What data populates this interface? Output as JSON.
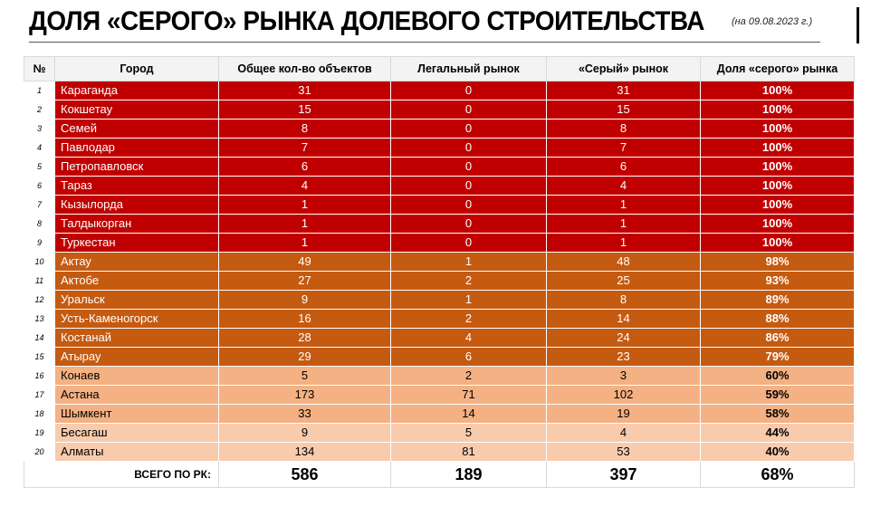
{
  "title": "ДОЛЯ «СЕРОГО» РЫНКА ДОЛЕВОГО СТРОИТЕЛЬСТВА",
  "subtitle": "(на 09.08.2023 г.)",
  "headers": [
    "№",
    "Город",
    "Общее кол-во объектов",
    "Легальный рынок",
    "«Серый» рынок",
    "Доля «серого» рынка"
  ],
  "rows": [
    {
      "n": "1",
      "city": "Караганда",
      "total": "31",
      "legal": "0",
      "gray": "31",
      "share": "100%",
      "tier": 1
    },
    {
      "n": "2",
      "city": "Кокшетау",
      "total": "15",
      "legal": "0",
      "gray": "15",
      "share": "100%",
      "tier": 1
    },
    {
      "n": "3",
      "city": "Семей",
      "total": "8",
      "legal": "0",
      "gray": "8",
      "share": "100%",
      "tier": 1
    },
    {
      "n": "4",
      "city": "Павлодар",
      "total": "7",
      "legal": "0",
      "gray": "7",
      "share": "100%",
      "tier": 1
    },
    {
      "n": "5",
      "city": "Петропавловск",
      "total": "6",
      "legal": "0",
      "gray": "6",
      "share": "100%",
      "tier": 1
    },
    {
      "n": "6",
      "city": "Тараз",
      "total": "4",
      "legal": "0",
      "gray": "4",
      "share": "100%",
      "tier": 1
    },
    {
      "n": "7",
      "city": "Кызылорда",
      "total": "1",
      "legal": "0",
      "gray": "1",
      "share": "100%",
      "tier": 1
    },
    {
      "n": "8",
      "city": "Талдыкорган",
      "total": "1",
      "legal": "0",
      "gray": "1",
      "share": "100%",
      "tier": 1
    },
    {
      "n": "9",
      "city": "Туркестан",
      "total": "1",
      "legal": "0",
      "gray": "1",
      "share": "100%",
      "tier": 1
    },
    {
      "n": "10",
      "city": "Актау",
      "total": "49",
      "legal": "1",
      "gray": "48",
      "share": "98%",
      "tier": 2
    },
    {
      "n": "11",
      "city": "Актобе",
      "total": "27",
      "legal": "2",
      "gray": "25",
      "share": "93%",
      "tier": 2
    },
    {
      "n": "12",
      "city": "Уральск",
      "total": "9",
      "legal": "1",
      "gray": "8",
      "share": "89%",
      "tier": 2
    },
    {
      "n": "13",
      "city": "Усть-Каменогорск",
      "total": "16",
      "legal": "2",
      "gray": "14",
      "share": "88%",
      "tier": 2
    },
    {
      "n": "14",
      "city": "Костанай",
      "total": "28",
      "legal": "4",
      "gray": "24",
      "share": "86%",
      "tier": 2
    },
    {
      "n": "15",
      "city": "Атырау",
      "total": "29",
      "legal": "6",
      "gray": "23",
      "share": "79%",
      "tier": 2
    },
    {
      "n": "16",
      "city": "Конаев",
      "total": "5",
      "legal": "2",
      "gray": "3",
      "share": "60%",
      "tier": 3
    },
    {
      "n": "17",
      "city": "Астана",
      "total": "173",
      "legal": "71",
      "gray": "102",
      "share": "59%",
      "tier": 3
    },
    {
      "n": "18",
      "city": "Шымкент",
      "total": "33",
      "legal": "14",
      "gray": "19",
      "share": "58%",
      "tier": 3
    },
    {
      "n": "19",
      "city": "Бесагаш",
      "total": "9",
      "legal": "5",
      "gray": "4",
      "share": "44%",
      "tier": 4
    },
    {
      "n": "20",
      "city": "Алматы",
      "total": "134",
      "legal": "81",
      "gray": "53",
      "share": "40%",
      "tier": 4
    }
  ],
  "totals": {
    "label": "ВСЕГО ПО РК:",
    "total": "586",
    "legal": "189",
    "gray": "397",
    "share": "68%"
  },
  "tier_colors": {
    "1": "#c00000",
    "2": "#c55a11",
    "3": "#f4b183",
    "4": "#f8cbad"
  }
}
